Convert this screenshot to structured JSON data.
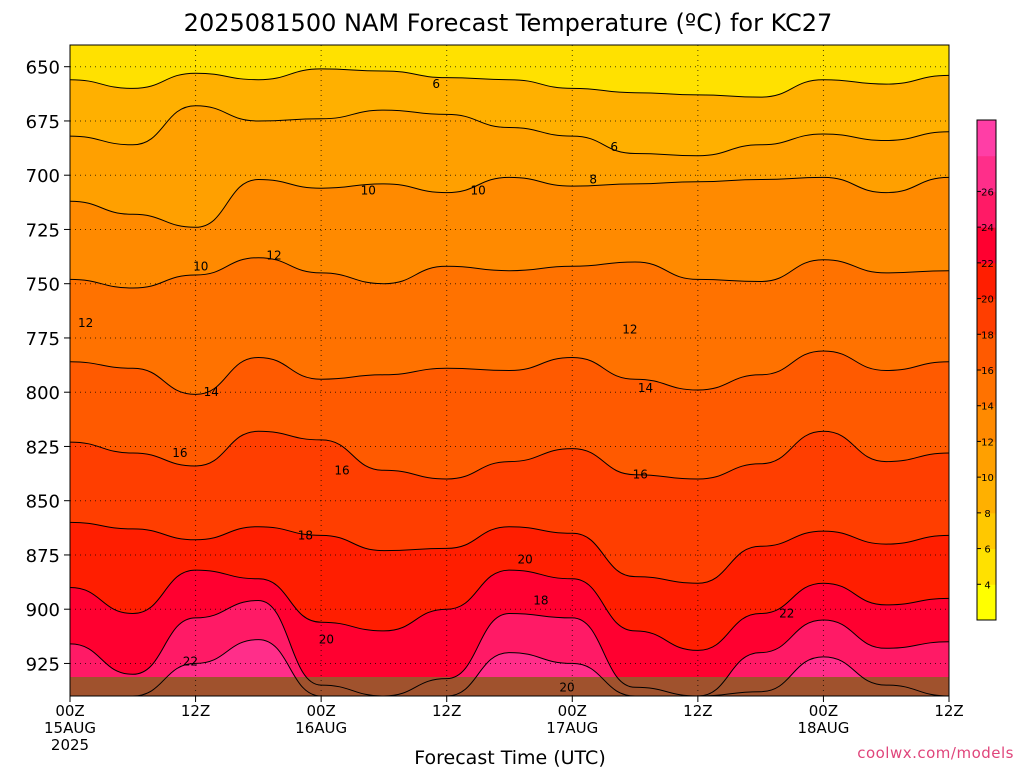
{
  "chart_data": {
    "type": "heatmap",
    "title": "2025081500 NAM Forecast Temperature (ºC) for KC27",
    "xlabel": "Forecast Time (UTC)",
    "ylabel": "",
    "y_ticks": [
      650,
      675,
      700,
      725,
      750,
      775,
      800,
      825,
      850,
      875,
      900,
      925
    ],
    "ylim": [
      640,
      940
    ],
    "x_ticks": [
      {
        "hour": 0,
        "line1": "00Z",
        "line2": "15AUG",
        "line3": "2025"
      },
      {
        "hour": 12,
        "line1": "12Z",
        "line2": "",
        "line3": ""
      },
      {
        "hour": 24,
        "line1": "00Z",
        "line2": "16AUG",
        "line3": ""
      },
      {
        "hour": 36,
        "line1": "12Z",
        "line2": "",
        "line3": ""
      },
      {
        "hour": 48,
        "line1": "00Z",
        "line2": "17AUG",
        "line3": ""
      },
      {
        "hour": 60,
        "line1": "12Z",
        "line2": "",
        "line3": ""
      },
      {
        "hour": 72,
        "line1": "00Z",
        "line2": "18AUG",
        "line3": ""
      },
      {
        "hour": 84,
        "line1": "12Z",
        "line2": "",
        "line3": ""
      }
    ],
    "xlim": [
      0,
      84
    ],
    "contour_levels": [
      2,
      4,
      6,
      8,
      10,
      12,
      14,
      16,
      18,
      20,
      22,
      24,
      26,
      28
    ],
    "colorbar": {
      "labels": [
        4,
        6,
        8,
        10,
        12,
        14,
        16,
        18,
        20,
        22,
        24,
        26
      ],
      "colors": [
        "#ffff00",
        "#ffe100",
        "#ffc800",
        "#ffb000",
        "#ffa000",
        "#ff8a00",
        "#ff7200",
        "#ff5a00",
        "#ff3e00",
        "#ff1e00",
        "#ff0030",
        "#ff1a66",
        "#ff2e8a",
        "#ff3ea6"
      ]
    },
    "contour_labels": [
      {
        "h": 35.0,
        "p": 658,
        "text": "6"
      },
      {
        "h": 52.0,
        "p": 687,
        "text": "6"
      },
      {
        "h": 50.0,
        "p": 702,
        "text": "8"
      },
      {
        "h": 28.5,
        "p": 707,
        "text": "10"
      },
      {
        "h": 39.0,
        "p": 707,
        "text": "10"
      },
      {
        "h": 12.5,
        "p": 742,
        "text": "10"
      },
      {
        "h": 19.5,
        "p": 737,
        "text": "12"
      },
      {
        "h": 1.5,
        "p": 768,
        "text": "12"
      },
      {
        "h": 53.5,
        "p": 771,
        "text": "12"
      },
      {
        "h": 13.5,
        "p": 800,
        "text": "14"
      },
      {
        "h": 55.0,
        "p": 798,
        "text": "14"
      },
      {
        "h": 10.5,
        "p": 828,
        "text": "16"
      },
      {
        "h": 26.0,
        "p": 836,
        "text": "16"
      },
      {
        "h": 54.5,
        "p": 838,
        "text": "16"
      },
      {
        "h": 22.5,
        "p": 866,
        "text": "18"
      },
      {
        "h": 43.5,
        "p": 877,
        "text": "20"
      },
      {
        "h": 45.0,
        "p": 896,
        "text": "18"
      },
      {
        "h": 24.5,
        "p": 914,
        "text": "20"
      },
      {
        "h": 11.5,
        "p": 924,
        "text": "22"
      },
      {
        "h": 68.5,
        "p": 902,
        "text": "22"
      },
      {
        "h": 47.5,
        "p": 936,
        "text": "20"
      }
    ],
    "series": [
      {
        "level": 6,
        "points": [
          [
            0,
            656
          ],
          [
            6,
            660
          ],
          [
            12,
            653
          ],
          [
            18,
            656
          ],
          [
            24,
            651
          ],
          [
            30,
            652
          ],
          [
            36,
            655
          ],
          [
            42,
            656
          ],
          [
            48,
            660
          ],
          [
            54,
            662
          ],
          [
            60,
            663
          ],
          [
            66,
            664
          ],
          [
            72,
            656
          ],
          [
            78,
            658
          ],
          [
            84,
            654
          ]
        ]
      },
      {
        "level": 8,
        "points": [
          [
            0,
            682
          ],
          [
            6,
            686
          ],
          [
            12,
            668
          ],
          [
            18,
            675
          ],
          [
            24,
            674
          ],
          [
            30,
            670
          ],
          [
            36,
            672
          ],
          [
            42,
            678
          ],
          [
            48,
            682
          ],
          [
            54,
            690
          ],
          [
            60,
            691
          ],
          [
            66,
            686
          ],
          [
            72,
            681
          ],
          [
            78,
            684
          ],
          [
            84,
            680
          ]
        ]
      },
      {
        "level": 10,
        "points": [
          [
            0,
            712
          ],
          [
            6,
            718
          ],
          [
            12,
            724
          ],
          [
            18,
            702
          ],
          [
            24,
            706
          ],
          [
            30,
            704
          ],
          [
            36,
            708
          ],
          [
            42,
            701
          ],
          [
            48,
            705
          ],
          [
            54,
            704
          ],
          [
            60,
            703
          ],
          [
            66,
            702
          ],
          [
            72,
            701
          ],
          [
            78,
            708
          ],
          [
            84,
            701
          ]
        ]
      },
      {
        "level": 12,
        "points": [
          [
            0,
            748
          ],
          [
            6,
            752
          ],
          [
            12,
            746
          ],
          [
            18,
            738
          ],
          [
            24,
            745
          ],
          [
            30,
            750
          ],
          [
            36,
            742
          ],
          [
            42,
            744
          ],
          [
            48,
            742
          ],
          [
            54,
            740
          ],
          [
            60,
            748
          ],
          [
            66,
            749
          ],
          [
            72,
            739
          ],
          [
            78,
            745
          ],
          [
            84,
            744
          ]
        ]
      },
      {
        "level": 14,
        "points": [
          [
            0,
            786
          ],
          [
            6,
            789
          ],
          [
            12,
            801
          ],
          [
            18,
            784
          ],
          [
            24,
            794
          ],
          [
            30,
            792
          ],
          [
            36,
            789
          ],
          [
            42,
            790
          ],
          [
            48,
            784
          ],
          [
            54,
            794
          ],
          [
            60,
            799
          ],
          [
            66,
            792
          ],
          [
            72,
            781
          ],
          [
            78,
            790
          ],
          [
            84,
            786
          ]
        ]
      },
      {
        "level": 16,
        "points": [
          [
            0,
            823
          ],
          [
            6,
            828
          ],
          [
            12,
            834
          ],
          [
            18,
            818
          ],
          [
            24,
            822
          ],
          [
            30,
            836
          ],
          [
            36,
            840
          ],
          [
            42,
            832
          ],
          [
            48,
            826
          ],
          [
            54,
            838
          ],
          [
            60,
            840
          ],
          [
            66,
            833
          ],
          [
            72,
            818
          ],
          [
            78,
            832
          ],
          [
            84,
            828
          ]
        ]
      },
      {
        "level": 18,
        "points": [
          [
            0,
            860
          ],
          [
            6,
            863
          ],
          [
            12,
            868
          ],
          [
            18,
            862
          ],
          [
            24,
            866
          ],
          [
            30,
            873
          ],
          [
            36,
            872
          ],
          [
            42,
            862
          ],
          [
            48,
            865
          ],
          [
            54,
            885
          ],
          [
            60,
            888
          ],
          [
            66,
            871
          ],
          [
            72,
            864
          ],
          [
            78,
            870
          ],
          [
            84,
            866
          ]
        ]
      },
      {
        "level": 20,
        "points": [
          [
            0,
            890
          ],
          [
            6,
            902
          ],
          [
            12,
            882
          ],
          [
            18,
            886
          ],
          [
            24,
            906
          ],
          [
            30,
            910
          ],
          [
            36,
            900
          ],
          [
            42,
            882
          ],
          [
            48,
            886
          ],
          [
            54,
            910
          ],
          [
            60,
            919
          ],
          [
            66,
            902
          ],
          [
            72,
            888
          ],
          [
            78,
            898
          ],
          [
            84,
            895
          ]
        ]
      },
      {
        "level": 22,
        "points": [
          [
            0,
            916
          ],
          [
            6,
            930
          ],
          [
            12,
            904
          ],
          [
            18,
            896
          ],
          [
            24,
            935
          ],
          [
            30,
            940
          ],
          [
            36,
            932
          ],
          [
            42,
            902
          ],
          [
            48,
            904
          ],
          [
            54,
            936
          ],
          [
            60,
            940
          ],
          [
            66,
            920
          ],
          [
            72,
            905
          ],
          [
            78,
            918
          ],
          [
            84,
            915
          ]
        ]
      },
      {
        "level": 24,
        "points": [
          [
            0,
            940
          ],
          [
            6,
            940
          ],
          [
            12,
            925
          ],
          [
            18,
            914
          ],
          [
            24,
            940
          ],
          [
            30,
            940
          ],
          [
            36,
            940
          ],
          [
            42,
            920
          ],
          [
            48,
            925
          ],
          [
            54,
            940
          ],
          [
            60,
            940
          ],
          [
            66,
            938
          ],
          [
            72,
            922
          ],
          [
            78,
            935
          ],
          [
            84,
            940
          ]
        ]
      }
    ]
  }
}
